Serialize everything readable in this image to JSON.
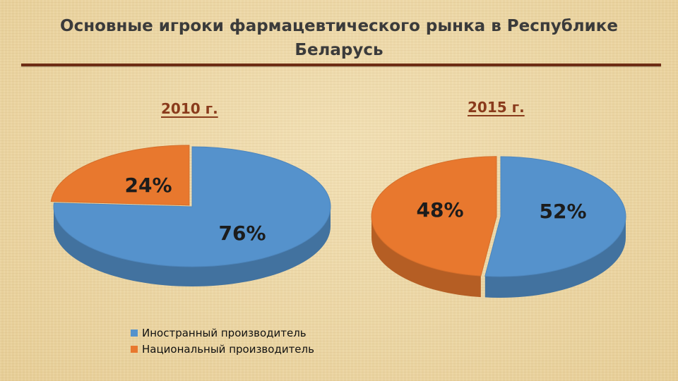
{
  "title": "Основные игроки фармацевтического рынка в Республике Беларусь",
  "colors": {
    "foreign": "#5592cc",
    "national": "#e8782e"
  },
  "chart_data": [
    {
      "type": "pie",
      "title": "2010 г.",
      "slices": [
        {
          "label": "Иностранный производитель",
          "value": 76,
          "text": "76%"
        },
        {
          "label": "Национальный производитель",
          "value": 24,
          "text": "24%"
        }
      ]
    },
    {
      "type": "pie",
      "title": "2015 г.",
      "slices": [
        {
          "label": "Иностранный производитель",
          "value": 52,
          "text": "52%"
        },
        {
          "label": "Национальный производитель",
          "value": 48,
          "text": "48%"
        }
      ]
    }
  ],
  "legend": [
    {
      "label": "Иностранный производитель",
      "color": "#5592cc"
    },
    {
      "label": "Национальный производитель",
      "color": "#e8782e"
    }
  ]
}
